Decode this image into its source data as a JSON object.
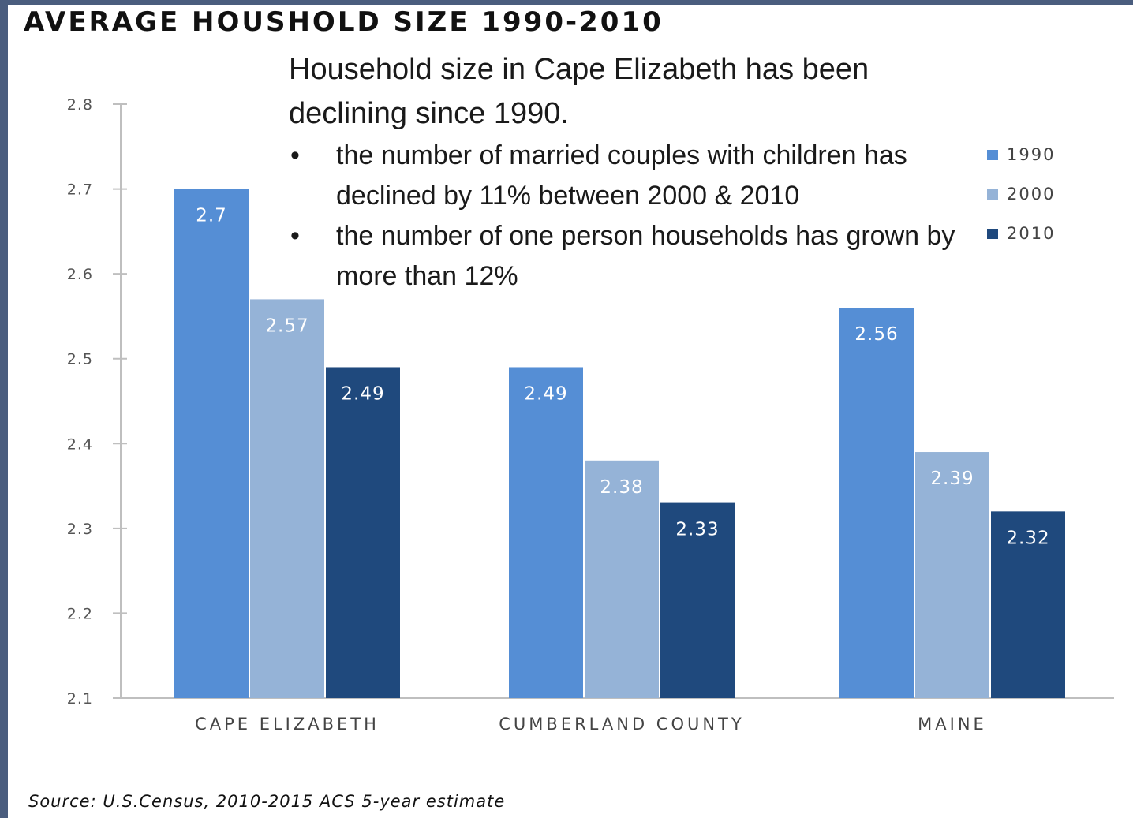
{
  "title": "AVERAGE HOUSHOLD SIZE 1990-2010",
  "annotation": {
    "lead": "Household size in Cape Elizabeth has been declining since 1990.",
    "bullet_symbol": "•",
    "bullets": [
      "the number of married couples with children has declined by 11% between 2000 & 2010",
      "the number of one person households has grown by more than 12%"
    ]
  },
  "source": "Source: U.S.Census, 2010-2015 ACS 5-year estimate",
  "chart_data": {
    "type": "bar",
    "categories": [
      "CAPE ELIZABETH",
      "CUMBERLAND COUNTY",
      "MAINE"
    ],
    "series": [
      {
        "name": "1990",
        "color": "#558ed5",
        "values": [
          2.7,
          2.49,
          2.56
        ],
        "labels": [
          "2.7",
          "2.49",
          "2.56"
        ]
      },
      {
        "name": "2000",
        "color": "#95b3d7",
        "values": [
          2.57,
          2.38,
          2.39
        ],
        "labels": [
          "2.57",
          "2.38",
          "2.39"
        ]
      },
      {
        "name": "2010",
        "color": "#1f497d",
        "values": [
          2.49,
          2.33,
          2.32
        ],
        "labels": [
          "2.49",
          "2.33",
          "2.32"
        ]
      }
    ],
    "ylim": [
      2.1,
      2.8
    ],
    "yticks": [
      2.1,
      2.2,
      2.3,
      2.4,
      2.5,
      2.6,
      2.7,
      2.8
    ],
    "ytick_labels": [
      "2.1",
      "2.2",
      "2.3",
      "2.4",
      "2.5",
      "2.6",
      "2.7",
      "2.8"
    ],
    "legend_position": "top-right",
    "grid": false
  }
}
